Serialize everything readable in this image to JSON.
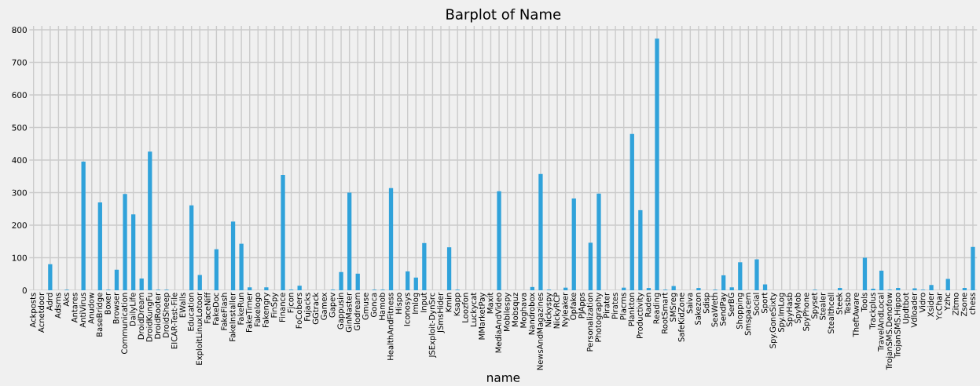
{
  "chart_data": {
    "type": "bar",
    "title": "Barplot of Name",
    "xlabel": "name",
    "categories": [
      "Ackposts",
      "Acnetdoor",
      "Adrd",
      "Adsms",
      "Aks",
      "Antares",
      "AntiVirus",
      "Anudow",
      "BaseBridge",
      "Boxer",
      "Browser",
      "Communication",
      "DailyLife",
      "DroidDream",
      "DroidKungFu",
      "DroidRooter",
      "DroidSheep",
      "EICAR-Test-File",
      "EWalls",
      "Education",
      "ExploitLinuxLotoor",
      "FaceNiff",
      "FakeDoc",
      "FakeFlash",
      "FakeInstaller",
      "FakeRun",
      "FakeTimer",
      "Fakelogo",
      "Fakengry",
      "FinSpy",
      "Finance",
      "Fjcon",
      "FoCobers",
      "Fujacks",
      "GGtrack",
      "Gamex",
      "Gapev",
      "Gappusin",
      "GinMaster",
      "Glodream",
      "Gmuse",
      "Gonca",
      "Hamob",
      "HealthAndFitness",
      "Hispo",
      "Iconosys",
      "Imlog",
      "Input",
      "JSExploit-DynSrc",
      "JSmsHider",
      "Kmin",
      "Ksapp",
      "Loozfon",
      "Luckycat",
      "MMarketPay",
      "Maxit",
      "MediaAndVideo",
      "Mobilespy",
      "Mobsquz",
      "Moghava",
      "Nandrobox",
      "NewsAndMagazines",
      "Nickyspy",
      "NickyRCP",
      "Nyleaker",
      "Opfake",
      "PJApps",
      "Personalization",
      "Photography",
      "Pirater",
      "Pirates",
      "Placms",
      "Plankton",
      "Productivity",
      "Raden",
      "Reading",
      "RootSmart",
      "SMSreg",
      "SafeKidZone",
      "Saiva",
      "Sakezon",
      "Sdisp",
      "SeaWeth",
      "SendPay",
      "SerBG",
      "Shopping",
      "Smspacem",
      "Social",
      "Sport",
      "Spy.GoneSixty",
      "Spy.ImLog",
      "SpyHasb",
      "SpyMob",
      "SpyPhone",
      "Spyset",
      "Stealer",
      "Stealthcell",
      "Steek",
      "Tesbo",
      "TheftAware",
      "Tools",
      "Trackplus",
      "TravelAndLocal",
      "TrojanSMS.Denofow",
      "TrojanSMS.Hippo",
      "Updtbot",
      "Vdloader",
      "Vidro",
      "Xsider",
      "YcChar",
      "Yzhc",
      "Zitmo",
      "Zsone",
      "chess"
    ],
    "values": [
      0,
      0,
      80,
      0,
      2,
      0,
      395,
      0,
      270,
      2,
      63,
      296,
      233,
      36,
      426,
      2,
      2,
      0,
      0,
      261,
      47,
      0,
      126,
      0,
      211,
      143,
      9,
      0,
      9,
      0,
      354,
      2,
      14,
      0,
      0,
      0,
      2,
      56,
      300,
      51,
      0,
      2,
      2,
      314,
      0,
      58,
      39,
      145,
      0,
      0,
      132,
      2,
      0,
      0,
      0,
      0,
      304,
      0,
      0,
      0,
      10,
      357,
      2,
      0,
      8,
      282,
      0,
      146,
      297,
      0,
      0,
      8,
      480,
      246,
      7,
      773,
      2,
      13,
      0,
      0,
      7,
      0,
      2,
      46,
      9,
      86,
      0,
      95,
      18,
      0,
      0,
      0,
      0,
      0,
      2,
      0,
      0,
      7,
      0,
      0,
      100,
      5,
      60,
      2,
      7,
      0,
      6,
      2,
      16,
      0,
      35,
      0,
      7,
      133
    ],
    "color": "#30a2da",
    "ylim": [
      0,
      812
    ],
    "yticks": [
      0,
      100,
      200,
      300,
      400,
      500,
      600,
      700,
      800
    ],
    "grid": true
  }
}
